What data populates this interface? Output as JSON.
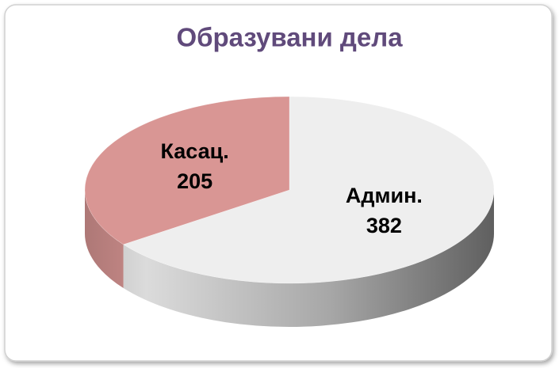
{
  "chart_data": {
    "type": "pie",
    "title": "Образувани дела",
    "categories": [
      "Админ.",
      "Касац."
    ],
    "values": [
      382,
      205
    ],
    "colors": [
      "#eeeeee",
      "#d99694"
    ],
    "start_angle": 0,
    "direction": "clockwise",
    "three_d": true
  }
}
